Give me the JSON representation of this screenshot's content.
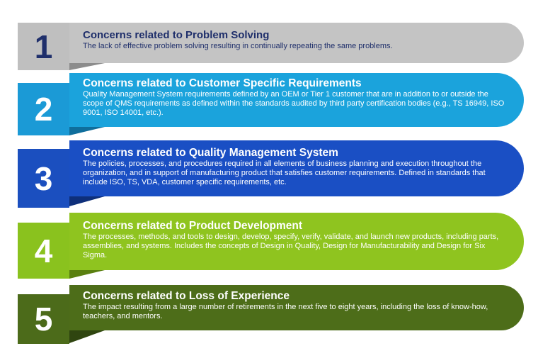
{
  "items": [
    {
      "number": "1",
      "title": "Concerns related to Problem Solving",
      "description": "The lack of effective problem solving resulting in continually repeating the same problems.",
      "num_color": "#1f2f6b",
      "num_bg": "#bfbfbf",
      "banner_bg": "#c4c4c4",
      "title_color": "#1f2f6b",
      "desc_color": "#1f2f6b"
    },
    {
      "number": "2",
      "title": "Concerns related to Customer Specific Requirements",
      "description": "Quality Management System requirements defined by an OEM or Tier 1 customer that are in addition to or outside the scope of QMS requirements as defined within the standards audited by third party certification bodies (e.g., TS 16949, ISO 9001, ISO 14001, etc.).",
      "num_color": "#ffffff",
      "num_bg": "#1b9ad6",
      "banner_bg": "#1ba3dc",
      "title_color": "#ffffff",
      "desc_color": "#ffffff"
    },
    {
      "number": "3",
      "title": "Concerns related to Quality Management System",
      "description": "The policies, processes, and procedures required in all elements of business planning and execution throughout the organization, and in support of manufacturing product that satisfies customer requirements. Defined in standards that include ISO, TS, VDA, customer specific requirements, etc.",
      "num_color": "#ffffff",
      "num_bg": "#1b4fbf",
      "banner_bg": "#1a4fc4",
      "title_color": "#ffffff",
      "desc_color": "#ffffff"
    },
    {
      "number": "4",
      "title": "Concerns related to Product Development",
      "description": "The processes, methods, and tools to design, develop, specify, verify, validate, and launch new products, including parts, assemblies, and systems. Includes the concepts of Design in Quality, Design for Manufacturability and Design for Six Sigma.",
      "num_color": "#ffffff",
      "num_bg": "#8ac21e",
      "banner_bg": "#8fc41f",
      "title_color": "#ffffff",
      "desc_color": "#ffffff"
    },
    {
      "number": "5",
      "title": "Concerns related to Loss of Experience",
      "description": "The impact resulting from a large number of retirements in the next five to eight years, including the loss of know-how, teachers, and mentors.",
      "num_color": "#ffffff",
      "num_bg": "#4c6b1a",
      "banner_bg": "#4d6d19",
      "title_color": "#ffffff",
      "desc_color": "#ffffff"
    }
  ]
}
